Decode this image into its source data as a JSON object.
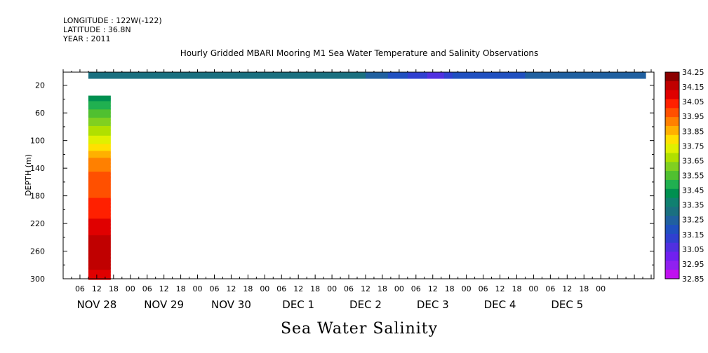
{
  "header": {
    "longitude": "LONGITUDE : 122W(-122)",
    "latitude": "LATITUDE : 36.8N",
    "year": "YEAR : 2011"
  },
  "chart_data": {
    "type": "heatmap",
    "title": "Hourly Gridded MBARI Mooring M1 Sea Water Temperature and Salinity Observations",
    "bottom_title": "Sea Water Salinity",
    "ylabel": "DEPTH (m)",
    "y_ticks": [
      "20",
      "60",
      "100",
      "140",
      "180",
      "220",
      "260",
      "300"
    ],
    "y_tick_values": [
      20,
      60,
      100,
      140,
      180,
      220,
      260,
      300
    ],
    "ylim": [
      1,
      300
    ],
    "y_inverted": true,
    "x_hour_labels": [
      "06",
      "12",
      "18",
      "00",
      "06",
      "12",
      "18",
      "00",
      "06",
      "12",
      "18",
      "00",
      "06",
      "12",
      "18",
      "00",
      "06",
      "12",
      "18",
      "00",
      "06",
      "12",
      "18",
      "00",
      "06",
      "12",
      "18",
      "00",
      "06",
      "12",
      "18",
      "00"
    ],
    "x_hours": [
      6,
      12,
      18,
      24,
      30,
      36,
      42,
      48,
      54,
      60,
      66,
      72,
      78,
      84,
      90,
      96,
      102,
      108,
      114,
      120,
      126,
      132,
      138,
      144,
      150,
      156,
      162,
      168,
      174,
      180,
      186,
      192
    ],
    "x_day_labels": [
      "NOV 28",
      "NOV 29",
      "NOV 30",
      "DEC  1",
      "DEC  2",
      "DEC  3",
      "DEC  4",
      "DEC  5"
    ],
    "x_day_hours": [
      12,
      36,
      60,
      84,
      108,
      132,
      156,
      180
    ],
    "xlim_hours": [
      0,
      211
    ],
    "colorbar_levels": [
      "34.25",
      "34.15",
      "34.05",
      "33.95",
      "33.85",
      "33.75",
      "33.65",
      "33.55",
      "33.45",
      "33.35",
      "33.25",
      "33.15",
      "33.05",
      "32.95",
      "32.85"
    ],
    "colorbar_colors": [
      "#8b0000",
      "#c00000",
      "#e00000",
      "#ff2000",
      "#ff5000",
      "#ff8000",
      "#ffb000",
      "#ffe000",
      "#e0f000",
      "#b0e000",
      "#80d020",
      "#50c030",
      "#20b050",
      "#009050",
      "#108070",
      "#1a7080",
      "#2060a0",
      "#2050c0",
      "#3040d0",
      "#5030e0",
      "#7020f0",
      "#9020f0",
      "#c010f0"
    ],
    "surface_series": {
      "depth": 1,
      "samples": [
        {
          "hour": 9,
          "value": 33.3
        },
        {
          "hour": 48,
          "value": 33.3
        },
        {
          "hour": 84,
          "value": 33.32
        },
        {
          "hour": 110,
          "value": 33.25
        },
        {
          "hour": 134,
          "value": 33.02
        },
        {
          "hour": 140,
          "value": 33.15
        },
        {
          "hour": 170,
          "value": 33.2
        },
        {
          "hour": 208,
          "value": 33.2
        }
      ]
    },
    "profile_series": {
      "hour_start": 9,
      "hour_end": 17,
      "samples": [
        {
          "depth": 35,
          "value": 33.4
        },
        {
          "depth": 60,
          "value": 33.55
        },
        {
          "depth": 90,
          "value": 33.7
        },
        {
          "depth": 110,
          "value": 33.8
        },
        {
          "depth": 130,
          "value": 33.95
        },
        {
          "depth": 160,
          "value": 34.0
        },
        {
          "depth": 190,
          "value": 34.05
        },
        {
          "depth": 220,
          "value": 34.12
        },
        {
          "depth": 255,
          "value": 34.22
        },
        {
          "depth": 280,
          "value": 34.18
        },
        {
          "depth": 300,
          "value": 34.15
        }
      ]
    }
  }
}
